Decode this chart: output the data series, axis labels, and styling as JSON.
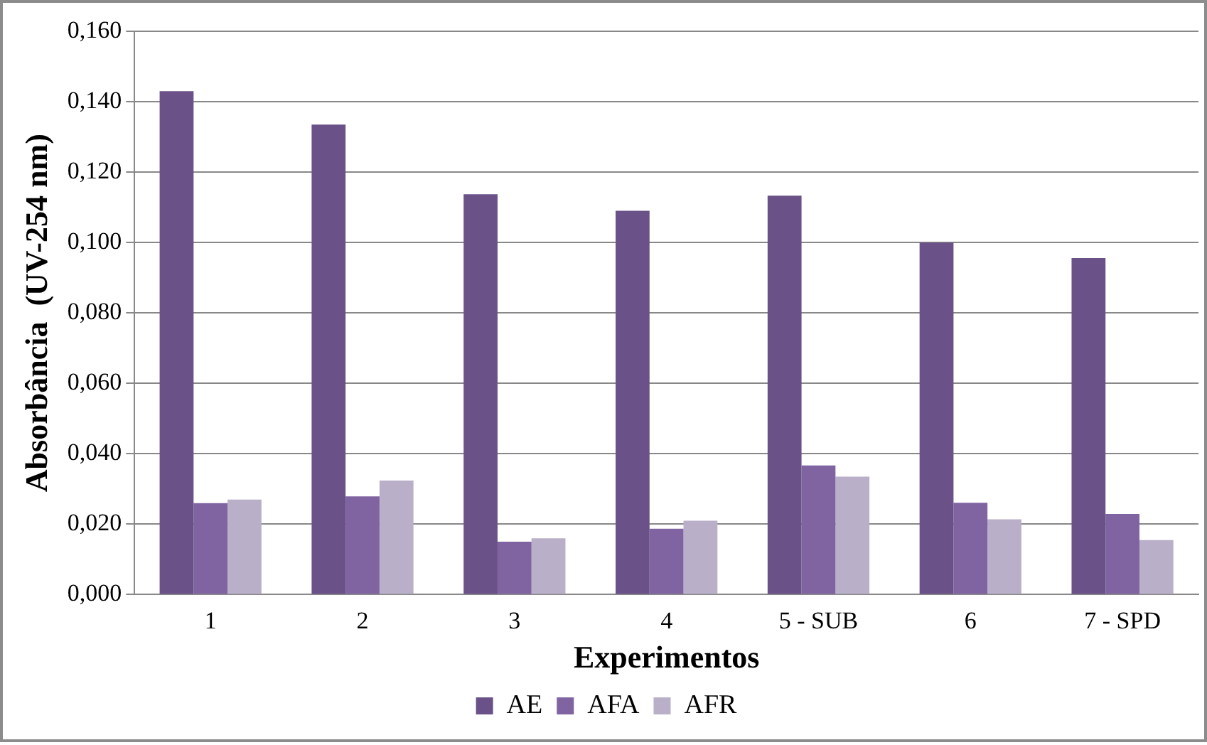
{
  "chart_data": {
    "type": "bar",
    "xlabel": "Experimentos",
    "ylabel": "Absorbância  (UV-254 nm)",
    "categories": [
      "1",
      "2",
      "3",
      "4",
      "5 - SUB",
      "6",
      "7 - SPD"
    ],
    "series": [
      {
        "name": "AE",
        "color": "#6a5288",
        "values": [
          0.143,
          0.1335,
          0.1137,
          0.109,
          0.1133,
          0.1,
          0.0956
        ]
      },
      {
        "name": "AFA",
        "color": "#8064a2",
        "values": [
          0.026,
          0.0279,
          0.015,
          0.0187,
          0.0367,
          0.0261,
          0.0229
        ]
      },
      {
        "name": "AFR",
        "color": "#b9afc9",
        "values": [
          0.027,
          0.0324,
          0.016,
          0.021,
          0.0335,
          0.0214,
          0.0155
        ]
      }
    ],
    "ylim": [
      0,
      0.16
    ],
    "yticks": [
      {
        "value": 0,
        "label": "0,000"
      },
      {
        "value": 0.02,
        "label": "0,020"
      },
      {
        "value": 0.04,
        "label": "0,040"
      },
      {
        "value": 0.06,
        "label": "0,060"
      },
      {
        "value": 0.08,
        "label": "0,080"
      },
      {
        "value": 0.1,
        "label": "0,100"
      },
      {
        "value": 0.12,
        "label": "0,120"
      },
      {
        "value": 0.14,
        "label": "0,140"
      },
      {
        "value": 0.16,
        "label": "0,160"
      }
    ],
    "grid": "y",
    "legend": "bottom"
  }
}
